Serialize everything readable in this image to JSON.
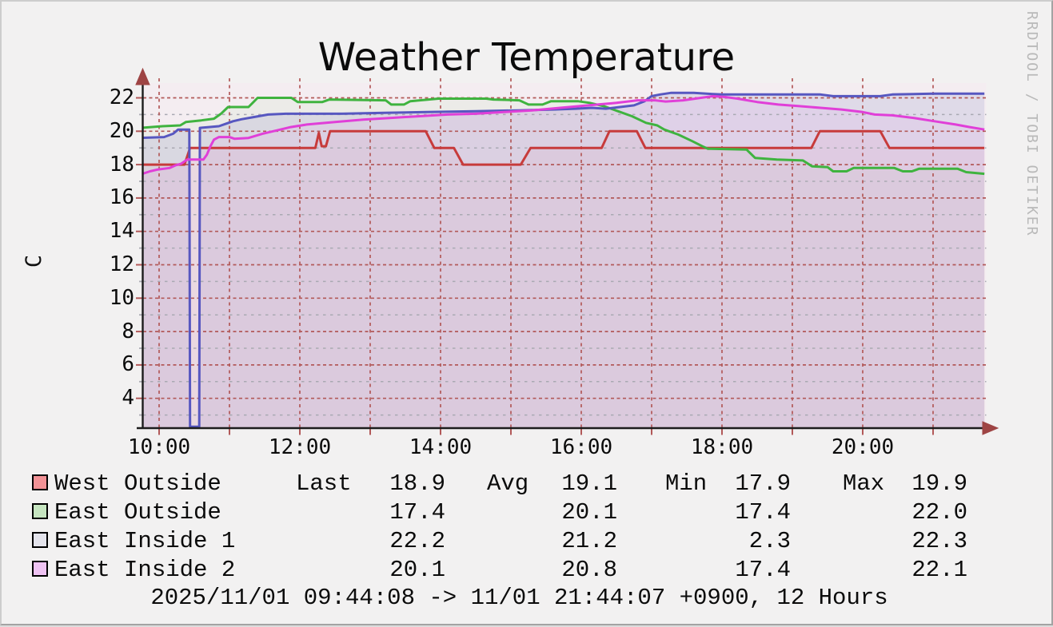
{
  "watermark": "RRDTOOL / TOBI OETIKER",
  "footer": "2025/11/01 09:44:08 -> 11/01 21:44:07 +0900, 12 Hours",
  "colors": {
    "page_bg": "#f2f1f1",
    "plot_bg": "#f4edf1",
    "grid_major": "#b25959",
    "grid_minor": "#a9a9b2",
    "axis": "#1c1c1c",
    "arrow": "#9e4444",
    "watermark_gray": "#b9b9b9"
  },
  "legend": {
    "headers": {
      "last": "Last",
      "avg": "Avg",
      "min": "Min",
      "max": "Max"
    },
    "rows": [
      {
        "name": "West Outside",
        "swatch": "#f29296",
        "last": "18.9",
        "avg": "19.1",
        "min": "17.9",
        "max": "19.9"
      },
      {
        "name": "East Outside",
        "swatch": "#c6e5c0",
        "last": "17.4",
        "avg": "20.1",
        "min": "17.4",
        "max": "22.0"
      },
      {
        "name": "East Inside 1",
        "swatch": "#e4e4ec",
        "last": "22.2",
        "avg": "21.2",
        "min": "2.3",
        "max": "22.3"
      },
      {
        "name": "East Inside 2",
        "swatch": "#efc3f3",
        "last": "20.1",
        "avg": "20.8",
        "min": "17.4",
        "max": "22.1"
      }
    ]
  },
  "chart_data": {
    "type": "line",
    "title": "Weather Temperature",
    "ylabel": "C",
    "legend_position": "bottom",
    "grid": true,
    "x_axis": {
      "start_hour": 9.733,
      "end_hour": 21.733,
      "gridline_hours": [
        10,
        11,
        12,
        13,
        14,
        15,
        16,
        17,
        18,
        19,
        20,
        21
      ],
      "tick_hours": [
        10,
        12,
        14,
        16,
        18,
        20
      ],
      "tick_labels": [
        "10:00",
        "12:00",
        "14:00",
        "16:00",
        "18:00",
        "20:00"
      ]
    },
    "y_axis": {
      "min": 2.2,
      "max": 22.8,
      "major_ticks": [
        4,
        6,
        8,
        10,
        12,
        14,
        16,
        18,
        20,
        22
      ],
      "minor_ticks": [
        3,
        5,
        7,
        9,
        11,
        13,
        15,
        17,
        19,
        21
      ]
    },
    "series": [
      {
        "name": "West Outside",
        "line_color": "#c73b3b",
        "fill_color": "rgba(242,150,153,0.10)",
        "points": [
          [
            9.73,
            18.0
          ],
          [
            10.36,
            18.0
          ],
          [
            10.44,
            19.0
          ],
          [
            12.22,
            19.0
          ],
          [
            12.27,
            19.9
          ],
          [
            12.31,
            19.1
          ],
          [
            12.37,
            19.1
          ],
          [
            12.43,
            20.0
          ],
          [
            13.79,
            20.0
          ],
          [
            13.91,
            19.0
          ],
          [
            14.19,
            19.0
          ],
          [
            14.32,
            18.0
          ],
          [
            15.14,
            18.0
          ],
          [
            15.28,
            19.0
          ],
          [
            16.29,
            19.0
          ],
          [
            16.4,
            20.0
          ],
          [
            16.79,
            20.0
          ],
          [
            16.91,
            19.0
          ],
          [
            19.27,
            19.0
          ],
          [
            19.39,
            20.0
          ],
          [
            20.25,
            20.0
          ],
          [
            20.38,
            19.0
          ],
          [
            21.73,
            19.0
          ]
        ]
      },
      {
        "name": "East Outside",
        "line_color": "#3fb33f",
        "fill_color": "rgba(180,225,175,0.12)",
        "points": [
          [
            9.73,
            20.2
          ],
          [
            10.05,
            20.3
          ],
          [
            10.3,
            20.35
          ],
          [
            10.38,
            20.55
          ],
          [
            10.6,
            20.65
          ],
          [
            10.78,
            20.75
          ],
          [
            10.88,
            21.05
          ],
          [
            10.98,
            21.45
          ],
          [
            11.27,
            21.45
          ],
          [
            11.33,
            21.7
          ],
          [
            11.4,
            22.0
          ],
          [
            11.88,
            22.0
          ],
          [
            11.97,
            21.75
          ],
          [
            12.32,
            21.75
          ],
          [
            12.42,
            21.9
          ],
          [
            13.22,
            21.85
          ],
          [
            13.3,
            21.6
          ],
          [
            13.48,
            21.6
          ],
          [
            13.57,
            21.8
          ],
          [
            13.97,
            21.95
          ],
          [
            14.65,
            21.95
          ],
          [
            14.75,
            21.9
          ],
          [
            15.12,
            21.85
          ],
          [
            15.25,
            21.6
          ],
          [
            15.45,
            21.6
          ],
          [
            15.57,
            21.8
          ],
          [
            15.95,
            21.8
          ],
          [
            16.12,
            21.7
          ],
          [
            16.32,
            21.5
          ],
          [
            16.52,
            21.2
          ],
          [
            16.72,
            20.9
          ],
          [
            16.92,
            20.5
          ],
          [
            17.08,
            20.35
          ],
          [
            17.18,
            20.1
          ],
          [
            17.38,
            19.8
          ],
          [
            17.58,
            19.4
          ],
          [
            17.72,
            19.1
          ],
          [
            17.8,
            18.95
          ],
          [
            18.35,
            18.9
          ],
          [
            18.47,
            18.4
          ],
          [
            18.78,
            18.3
          ],
          [
            19.15,
            18.25
          ],
          [
            19.28,
            17.9
          ],
          [
            19.5,
            17.85
          ],
          [
            19.58,
            17.6
          ],
          [
            19.77,
            17.6
          ],
          [
            19.87,
            17.8
          ],
          [
            20.45,
            17.8
          ],
          [
            20.57,
            17.6
          ],
          [
            20.7,
            17.6
          ],
          [
            20.8,
            17.75
          ],
          [
            21.35,
            17.75
          ],
          [
            21.47,
            17.55
          ],
          [
            21.73,
            17.45
          ]
        ]
      },
      {
        "name": "East Inside 1",
        "line_color": "#5757c0",
        "fill_color": "rgba(150,150,200,0.22)",
        "points": [
          [
            9.73,
            19.6
          ],
          [
            10.07,
            19.65
          ],
          [
            10.2,
            19.85
          ],
          [
            10.27,
            20.1
          ],
          [
            10.43,
            20.1
          ],
          [
            10.44,
            2.3
          ],
          [
            10.57,
            2.3
          ],
          [
            10.58,
            20.2
          ],
          [
            10.85,
            20.3
          ],
          [
            10.95,
            20.45
          ],
          [
            11.05,
            20.6
          ],
          [
            11.17,
            20.72
          ],
          [
            11.35,
            20.85
          ],
          [
            11.55,
            21.0
          ],
          [
            11.8,
            21.05
          ],
          [
            12.6,
            21.05
          ],
          [
            13.2,
            21.1
          ],
          [
            13.8,
            21.15
          ],
          [
            14.5,
            21.2
          ],
          [
            15.1,
            21.25
          ],
          [
            15.6,
            21.3
          ],
          [
            15.92,
            21.35
          ],
          [
            16.15,
            21.4
          ],
          [
            16.35,
            21.35
          ],
          [
            16.55,
            21.45
          ],
          [
            16.75,
            21.55
          ],
          [
            16.9,
            21.8
          ],
          [
            17.0,
            22.1
          ],
          [
            17.12,
            22.2
          ],
          [
            17.28,
            22.3
          ],
          [
            17.6,
            22.3
          ],
          [
            17.78,
            22.25
          ],
          [
            18.0,
            22.2
          ],
          [
            19.4,
            22.2
          ],
          [
            19.58,
            22.1
          ],
          [
            20.25,
            22.1
          ],
          [
            20.42,
            22.2
          ],
          [
            21.0,
            22.25
          ],
          [
            21.73,
            22.25
          ]
        ]
      },
      {
        "name": "East Inside 2",
        "line_color": "#e03fd8",
        "fill_color": "rgba(230,170,235,0.18)",
        "points": [
          [
            9.73,
            17.4
          ],
          [
            9.87,
            17.6
          ],
          [
            9.97,
            17.7
          ],
          [
            10.15,
            17.8
          ],
          [
            10.23,
            17.95
          ],
          [
            10.31,
            18.05
          ],
          [
            10.4,
            18.3
          ],
          [
            10.63,
            18.3
          ],
          [
            10.68,
            18.6
          ],
          [
            10.73,
            19.1
          ],
          [
            10.78,
            19.5
          ],
          [
            10.85,
            19.65
          ],
          [
            11.0,
            19.65
          ],
          [
            11.07,
            19.55
          ],
          [
            11.27,
            19.6
          ],
          [
            11.47,
            19.85
          ],
          [
            11.67,
            20.05
          ],
          [
            11.87,
            20.25
          ],
          [
            12.1,
            20.4
          ],
          [
            12.5,
            20.55
          ],
          [
            12.9,
            20.7
          ],
          [
            13.3,
            20.8
          ],
          [
            13.7,
            20.9
          ],
          [
            14.1,
            21.0
          ],
          [
            14.5,
            21.05
          ],
          [
            14.9,
            21.15
          ],
          [
            15.3,
            21.25
          ],
          [
            15.7,
            21.4
          ],
          [
            16.1,
            21.55
          ],
          [
            16.5,
            21.7
          ],
          [
            16.8,
            21.85
          ],
          [
            17.05,
            21.85
          ],
          [
            17.2,
            21.78
          ],
          [
            17.45,
            21.85
          ],
          [
            17.7,
            22.0
          ],
          [
            17.87,
            22.1
          ],
          [
            18.05,
            22.05
          ],
          [
            18.22,
            21.95
          ],
          [
            18.5,
            21.75
          ],
          [
            18.8,
            21.6
          ],
          [
            19.1,
            21.5
          ],
          [
            19.4,
            21.4
          ],
          [
            19.7,
            21.3
          ],
          [
            20.0,
            21.15
          ],
          [
            20.17,
            21.0
          ],
          [
            20.42,
            20.95
          ],
          [
            20.72,
            20.8
          ],
          [
            21.02,
            20.6
          ],
          [
            21.32,
            20.4
          ],
          [
            21.52,
            20.25
          ],
          [
            21.73,
            20.1
          ]
        ]
      }
    ]
  }
}
